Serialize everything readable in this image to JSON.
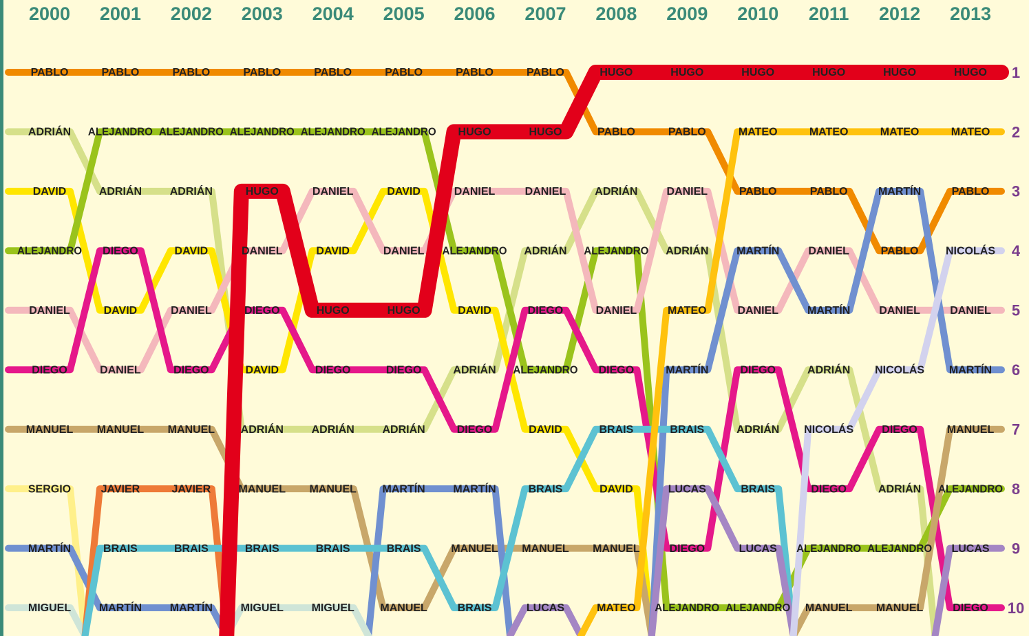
{
  "chart_data": {
    "type": "bump",
    "categories": [
      "2000",
      "2001",
      "2002",
      "2003",
      "2004",
      "2005",
      "2006",
      "2007",
      "2008",
      "2009",
      "2010",
      "2011",
      "2012",
      "2013"
    ],
    "ylim": [
      1,
      10
    ],
    "yticks": [
      1,
      2,
      3,
      4,
      5,
      6,
      7,
      8,
      9,
      10
    ],
    "highlight": "HUGO",
    "series": [
      {
        "name": "PABLO",
        "color": "#f08a00",
        "values": [
          1,
          1,
          1,
          1,
          1,
          1,
          1,
          1,
          2,
          2,
          3,
          3,
          4,
          3
        ]
      },
      {
        "name": "ADRIÁN",
        "color": "#d6e08a",
        "values": [
          2,
          3,
          3,
          7,
          7,
          7,
          6,
          4,
          3,
          4,
          7,
          6,
          8,
          null
        ]
      },
      {
        "name": "DAVID",
        "color": "#ffe600",
        "values": [
          3,
          5,
          4,
          6,
          4,
          3,
          5,
          7,
          8,
          null,
          null,
          null,
          null,
          null
        ]
      },
      {
        "name": "ALEJANDRO",
        "color": "#9ac31c",
        "values": [
          4,
          2,
          2,
          2,
          2,
          2,
          4,
          6,
          4,
          10,
          10,
          9,
          9,
          8
        ]
      },
      {
        "name": "DANIEL",
        "color": "#f4b8bc",
        "values": [
          5,
          6,
          5,
          4,
          3,
          4,
          3,
          3,
          5,
          3,
          5,
          4,
          5,
          5
        ]
      },
      {
        "name": "DIEGO",
        "color": "#e5188a",
        "values": [
          6,
          4,
          6,
          5,
          6,
          6,
          7,
          5,
          6,
          9,
          6,
          8,
          7,
          10
        ]
      },
      {
        "name": "MANUEL",
        "color": "#c8a76a",
        "values": [
          7,
          7,
          7,
          8,
          8,
          10,
          9,
          9,
          9,
          null,
          null,
          10,
          10,
          7
        ]
      },
      {
        "name": "SERGIO",
        "color": "#fff08a",
        "values": [
          8,
          null,
          null,
          null,
          null,
          null,
          null,
          null,
          null,
          null,
          null,
          null,
          null,
          null
        ]
      },
      {
        "name": "MARTÍN",
        "color": "#7090d0",
        "values": [
          9,
          10,
          10,
          null,
          null,
          8,
          8,
          null,
          null,
          6,
          4,
          5,
          3,
          6
        ]
      },
      {
        "name": "MIGUEL",
        "color": "#cfe5d8",
        "values": [
          10,
          null,
          null,
          10,
          10,
          null,
          null,
          null,
          null,
          null,
          null,
          null,
          null,
          null
        ]
      },
      {
        "name": "JAVIER",
        "color": "#ee7a38",
        "values": [
          null,
          8,
          8,
          null,
          null,
          null,
          null,
          null,
          null,
          null,
          null,
          null,
          null,
          null
        ]
      },
      {
        "name": "BRAIS",
        "color": "#5cc2d2",
        "values": [
          null,
          9,
          9,
          9,
          9,
          9,
          10,
          8,
          7,
          7,
          8,
          null,
          null,
          null
        ]
      },
      {
        "name": "LUCAS",
        "color": "#a486c4",
        "values": [
          null,
          null,
          null,
          null,
          null,
          null,
          null,
          10,
          null,
          8,
          9,
          null,
          null,
          9
        ]
      },
      {
        "name": "MATEO",
        "color": "#ffc20e",
        "values": [
          null,
          null,
          null,
          null,
          null,
          null,
          null,
          null,
          10,
          5,
          2,
          2,
          2,
          2
        ]
      },
      {
        "name": "NICOLÁS",
        "color": "#d2d2ee",
        "values": [
          null,
          null,
          null,
          null,
          null,
          null,
          null,
          null,
          null,
          null,
          null,
          7,
          6,
          4
        ]
      },
      {
        "name": "HUGO",
        "color": "#e2001a",
        "values": [
          null,
          null,
          null,
          3,
          5,
          5,
          2,
          2,
          1,
          1,
          1,
          1,
          1,
          1
        ]
      }
    ]
  }
}
